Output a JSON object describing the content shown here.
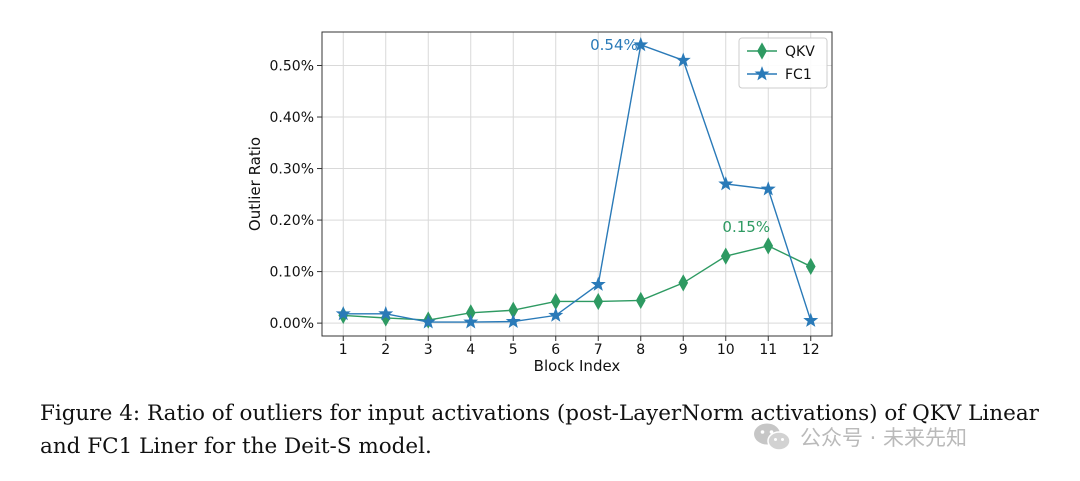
{
  "chart_data": {
    "type": "line",
    "x": [
      1,
      2,
      3,
      4,
      5,
      6,
      7,
      8,
      9,
      10,
      11,
      12
    ],
    "xlabel": "Block Index",
    "ylabel": "Outlier Ratio",
    "ylim": [
      -0.025,
      0.565
    ],
    "yticks": [
      0.0,
      0.1,
      0.2,
      0.3,
      0.4,
      0.5
    ],
    "ytick_labels": [
      "0.00%",
      "0.10%",
      "0.20%",
      "0.30%",
      "0.40%",
      "0.50%"
    ],
    "xtick_labels": [
      "1",
      "2",
      "3",
      "4",
      "5",
      "6",
      "7",
      "8",
      "9",
      "10",
      "11",
      "12"
    ],
    "grid": true,
    "legend_position": "top-right",
    "series": [
      {
        "name": "QKV",
        "marker": "thin_diamond",
        "color": "#2e9a62",
        "values": [
          0.015,
          0.01,
          0.006,
          0.02,
          0.025,
          0.042,
          0.042,
          0.044,
          0.078,
          0.13,
          0.15,
          0.11
        ]
      },
      {
        "name": "FC1",
        "marker": "star",
        "color": "#2a7ab8",
        "values": [
          0.018,
          0.018,
          0.002,
          0.002,
          0.003,
          0.015,
          0.075,
          0.54,
          0.51,
          0.27,
          0.26,
          0.005
        ]
      }
    ],
    "annotations": [
      {
        "text": "0.54%",
        "series": "FC1",
        "x": 8,
        "y": 0.54,
        "color": "#2a7ab8"
      },
      {
        "text": "0.15%",
        "series": "QKV",
        "x": 11,
        "y": 0.15,
        "color": "#2e9a62"
      }
    ]
  },
  "caption": "Figure 4:  Ratio of outliers for input activations (post-LayerNorm activations) of QKV Linear and FC1 Liner for the Deit-S model.",
  "watermark": "公众号 · 未来先知"
}
